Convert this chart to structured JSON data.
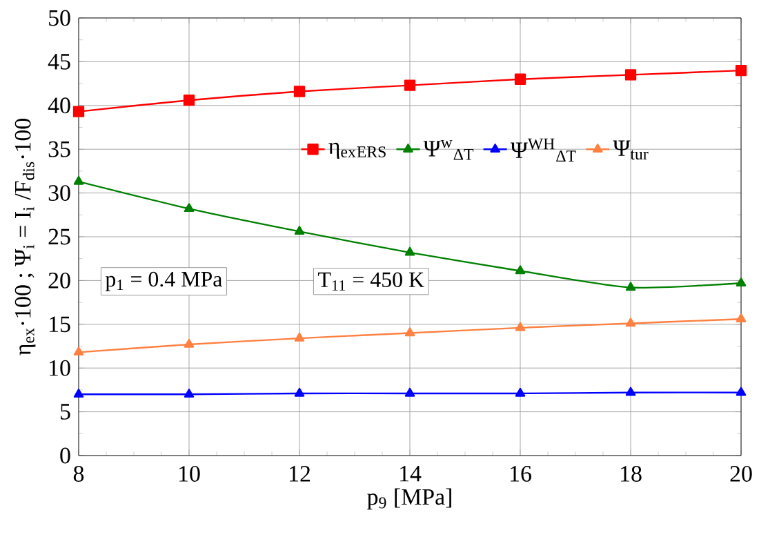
{
  "chart_data": {
    "type": "line",
    "xlabel": "p$_{9}$  [MPa]",
    "ylabel": "η$_{ex}$·100 ; Ψ$_{i}$ = I$_{i}$ /F$_{dis}$·100",
    "x": [
      8,
      10,
      12,
      14,
      16,
      18,
      20
    ],
    "series": [
      {
        "name": "η$_{ex}$$_{ERS}$",
        "color": "#ff0000",
        "marker": "square",
        "values": [
          39.3,
          40.6,
          41.6,
          42.3,
          43.0,
          43.5,
          44.0
        ]
      },
      {
        "name": "Ψ$^{w}$$_{ΔT}$",
        "color": "#008000",
        "marker": "triangle",
        "values": [
          31.3,
          28.2,
          25.6,
          23.2,
          21.1,
          19.2,
          19.7
        ]
      },
      {
        "name": "Ψ$^{WH}$$_{ΔT}$",
        "color": "#0000ff",
        "marker": "triangle",
        "values": [
          7.0,
          7.0,
          7.1,
          7.1,
          7.1,
          7.2,
          7.2
        ]
      },
      {
        "name": "Ψ$_{tur}$",
        "color": "#ff8040",
        "marker": "triangle",
        "values": [
          11.8,
          12.7,
          13.4,
          14.0,
          14.6,
          15.1,
          15.6
        ]
      }
    ],
    "xlim": [
      8,
      20
    ],
    "ylim": [
      0,
      50
    ],
    "xticks": [
      8,
      10,
      12,
      14,
      16,
      18,
      20
    ],
    "yticks": [
      0,
      5,
      10,
      15,
      20,
      25,
      30,
      35,
      40,
      45,
      50
    ],
    "grid": true,
    "legend": "top",
    "line_style": "solid",
    "annotations": [
      "p$_{1}$ = 0.4 MPa",
      "T$_{11}$ = 450 K"
    ]
  }
}
